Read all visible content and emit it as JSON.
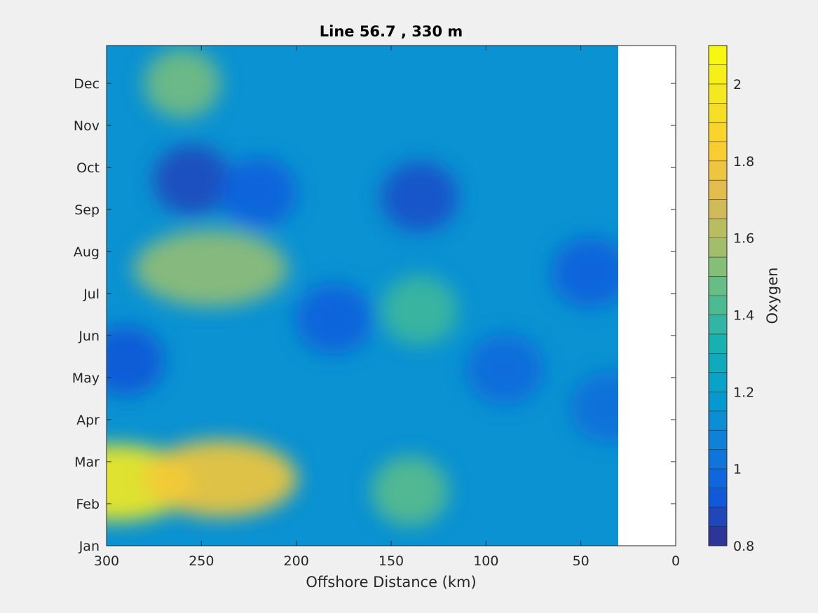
{
  "chart_data": {
    "type": "heatmap",
    "title": "Line 56.7 , 330 m",
    "xlabel": "Offshore Distance (km)",
    "ylabel": "",
    "x_reversed": true,
    "xlim": [
      0,
      300
    ],
    "x_data_extent": [
      30,
      300
    ],
    "xticks": [
      300,
      250,
      200,
      150,
      100,
      50,
      0
    ],
    "yticks": [
      "Jan",
      "Feb",
      "Mar",
      "Apr",
      "May",
      "Jun",
      "Jul",
      "Aug",
      "Sep",
      "Oct",
      "Nov",
      "Dec"
    ],
    "colorbar": {
      "label": "Oxygen",
      "range": [
        0.8,
        2.1
      ],
      "ticks": [
        0.8,
        1,
        1.2,
        1.4,
        1.6,
        1.8,
        2
      ],
      "tick_labels": [
        "0.8",
        "1",
        "1.2",
        "1.4",
        "1.6",
        "1.8",
        "2"
      ],
      "levels": 26,
      "colormap": "parula"
    },
    "features": [
      {
        "x_km": 295,
        "month": 1.5,
        "value": 2.0
      },
      {
        "x_km": 240,
        "month": 1.6,
        "value": 1.8
      },
      {
        "x_km": 255,
        "month": 8.7,
        "value": 0.88
      },
      {
        "x_km": 220,
        "month": 8.4,
        "value": 0.95
      },
      {
        "x_km": 135,
        "month": 8.3,
        "value": 0.9
      },
      {
        "x_km": 180,
        "month": 5.4,
        "value": 0.95
      },
      {
        "x_km": 290,
        "month": 4.4,
        "value": 0.92
      },
      {
        "x_km": 245,
        "month": 6.6,
        "value": 1.55
      },
      {
        "x_km": 135,
        "month": 5.6,
        "value": 1.4
      },
      {
        "x_km": 45,
        "month": 6.5,
        "value": 0.95
      },
      {
        "x_km": 90,
        "month": 4.2,
        "value": 0.98
      },
      {
        "x_km": 35,
        "month": 3.3,
        "value": 1.0
      },
      {
        "x_km": 260,
        "month": 11.0,
        "value": 1.5
      },
      {
        "x_km": 140,
        "month": 1.3,
        "value": 1.45
      }
    ]
  }
}
